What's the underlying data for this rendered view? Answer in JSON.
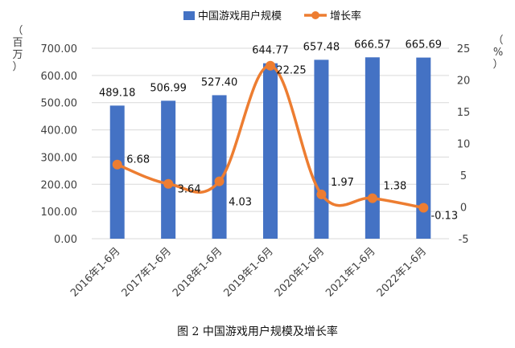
{
  "caption": "图 2 中国游戏用户规模及增长率",
  "colors": {
    "bar": "#4472C4",
    "line": "#ED7D31",
    "grid": "#D9D9D9",
    "text": "#404040"
  },
  "chart_data": {
    "type": "bar",
    "categories": [
      "2016年1-6月",
      "2017年1-6月",
      "2018年1-6月",
      "2019年1-6月",
      "2020年1-6月",
      "2021年1-6月",
      "2022年1-6月"
    ],
    "series": [
      {
        "name": "中国游戏用户规模",
        "type": "bar",
        "axis": "left",
        "values": [
          489.18,
          506.99,
          527.4,
          644.77,
          657.48,
          666.57,
          665.69
        ]
      },
      {
        "name": "增长率",
        "type": "line",
        "axis": "right",
        "values": [
          6.68,
          3.64,
          4.03,
          22.25,
          1.97,
          1.38,
          -0.13
        ]
      }
    ],
    "bar_labels": [
      "489.18",
      "506.99",
      "527.40",
      "644.77",
      "657.48",
      "666.57",
      "665.69"
    ],
    "line_labels": [
      "6.68",
      "3.64",
      "4.03",
      "22.25",
      "1.97",
      "1.38",
      "-0.13"
    ],
    "ylabel": "（百万）",
    "y2label": "（%）",
    "ylim": [
      0,
      700
    ],
    "y_ticks": [
      "0.00",
      "100.00",
      "200.00",
      "300.00",
      "400.00",
      "500.00",
      "600.00",
      "700.00"
    ],
    "y_tick_values": [
      0,
      100,
      200,
      300,
      400,
      500,
      600,
      700
    ],
    "y2lim": [
      -5,
      25
    ],
    "y2_ticks": [
      "-5",
      "0",
      "5",
      "10",
      "15",
      "20",
      "25"
    ],
    "y2_tick_values": [
      -5,
      0,
      5,
      10,
      15,
      20,
      25
    ],
    "legend_position": "top-center",
    "grid": "horizontal"
  }
}
